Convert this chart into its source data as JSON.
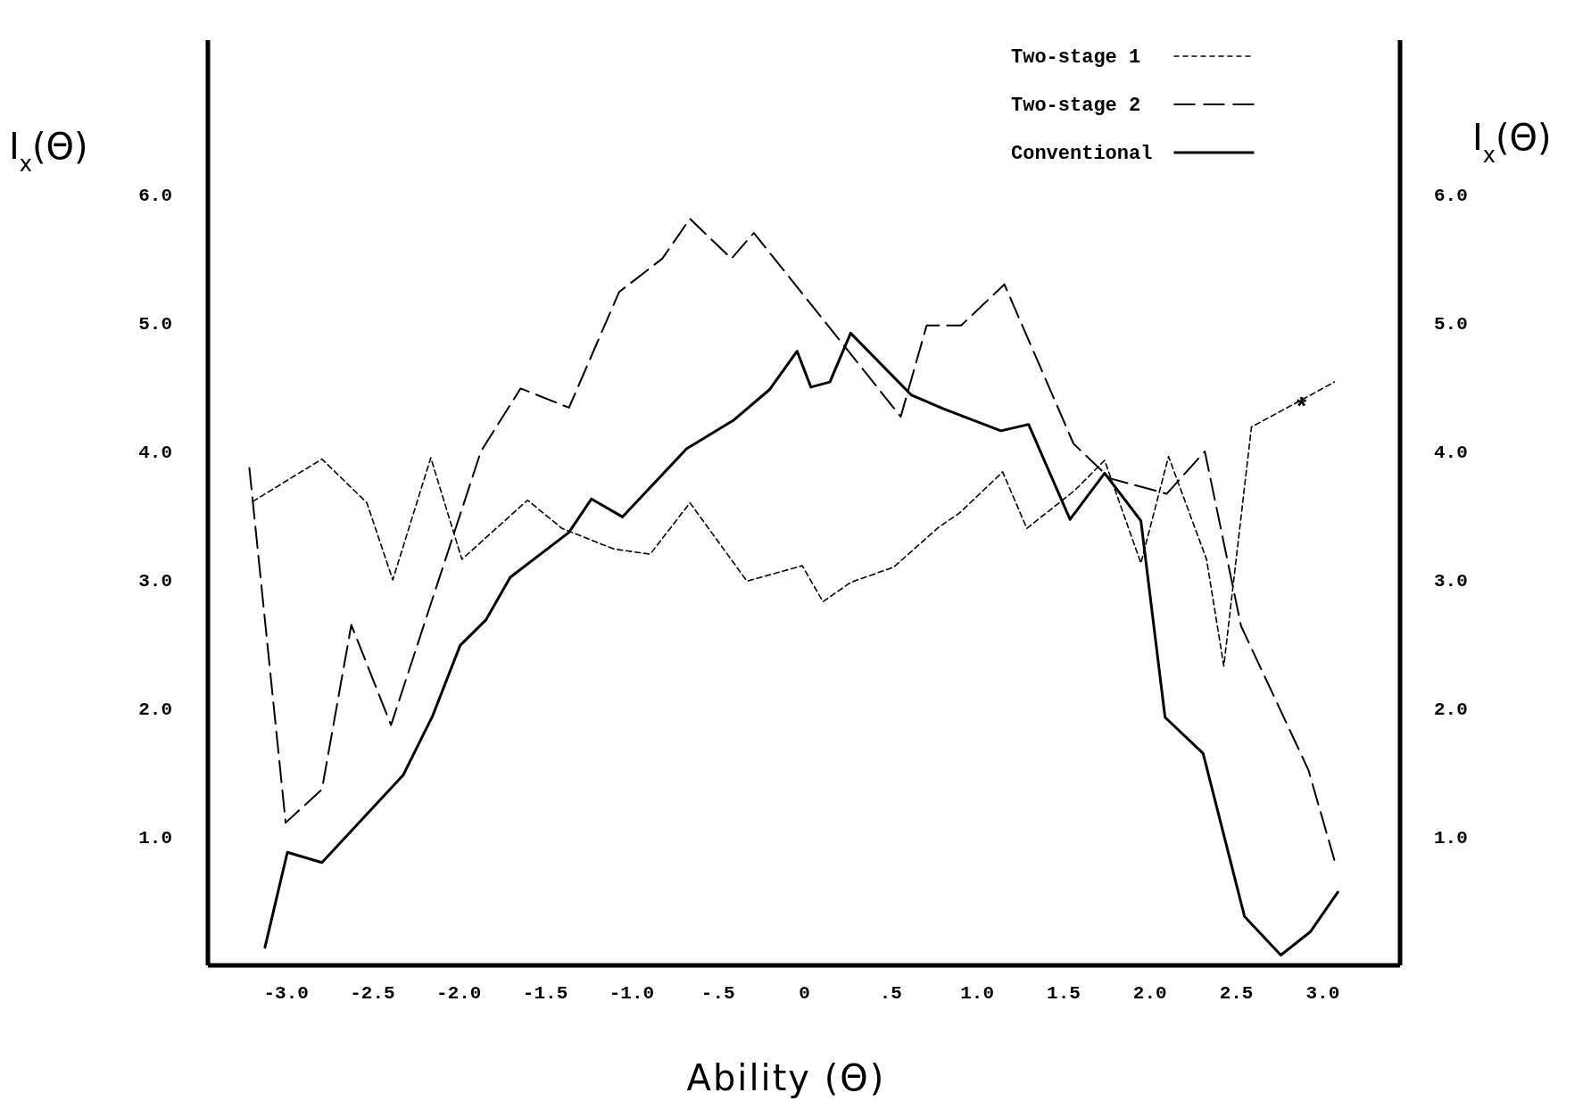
{
  "chart_data": {
    "type": "line",
    "xlabel": "Ability  (Θ)",
    "ylabel": "I$_{x}$(Θ)",
    "y2label": "I$_{x}$(Θ)",
    "xlim": [
      -3.45,
      3.45
    ],
    "ylim": [
      0,
      7.2
    ],
    "y2lim": [
      0,
      7.2
    ],
    "xticks": [
      {
        "value": -3,
        "label": "-3.0"
      },
      {
        "value": -2.5,
        "label": "-2.5"
      },
      {
        "value": -2,
        "label": "-2.0"
      },
      {
        "value": -1.5,
        "label": "-1.5"
      },
      {
        "value": -1,
        "label": "-1.0"
      },
      {
        "value": -0.5,
        "label": "-.5"
      },
      0,
      {
        "value": 0.5,
        "label": ".5"
      },
      {
        "value": 1,
        "label": "1.0"
      },
      {
        "value": 1.5,
        "label": "1.5"
      },
      {
        "value": 2,
        "label": "2.0"
      },
      {
        "value": 2.5,
        "label": "2.5"
      },
      {
        "value": 3,
        "label": "3.0"
      }
    ],
    "yticks": [
      {
        "value": 1,
        "label": "1.0"
      },
      {
        "value": 2,
        "label": "2.0"
      },
      {
        "value": 3,
        "label": "3.0"
      },
      {
        "value": 4,
        "label": "4.0"
      },
      {
        "value": 5,
        "label": "5.0"
      },
      {
        "value": 6,
        "label": "6.0"
      }
    ],
    "y2ticks": [
      {
        "value": 1,
        "label": "1.0"
      },
      {
        "value": 2,
        "label": "2.0"
      },
      {
        "value": 3,
        "label": "3.0"
      },
      {
        "value": 4,
        "label": "4.0"
      },
      {
        "value": 5,
        "label": "5.0"
      },
      {
        "value": 6,
        "label": "6.0"
      }
    ],
    "legend": "top right",
    "grid": false,
    "annotations": [
      {
        "text": "*",
        "x": 2.88,
        "y": 4.38
      }
    ],
    "series": [
      {
        "name": "Two-stage 1",
        "color": "#000000",
        "line_style": "dotted",
        "x": [
          -3.19,
          -2.79,
          -2.53,
          -2.38,
          -2.16,
          -1.98,
          -1.6,
          -1.4,
          -1.1,
          -0.89,
          -0.66,
          -0.33,
          -0.01,
          0.11,
          0.27,
          0.52,
          0.78,
          0.9,
          1.15,
          1.29,
          1.57,
          1.74,
          1.95,
          2.11,
          2.33,
          2.43,
          2.59,
          2.88,
          3.07
        ],
        "values": [
          3.61,
          3.94,
          3.6,
          3.0,
          3.95,
          3.16,
          3.62,
          3.4,
          3.24,
          3.2,
          3.6,
          2.99,
          3.11,
          2.83,
          2.98,
          3.1,
          3.41,
          3.52,
          3.84,
          3.4,
          3.7,
          3.93,
          3.13,
          3.96,
          3.16,
          2.33,
          4.19,
          4.4,
          4.54
        ]
      },
      {
        "name": "Two-stage 2",
        "color": "#000000",
        "line_style": "dashed",
        "x": [
          -3.21,
          -3.0,
          -2.79,
          -2.62,
          -2.39,
          -1.87,
          -1.64,
          -1.36,
          -1.07,
          -0.82,
          -0.66,
          -0.42,
          -0.29,
          0.56,
          0.71,
          0.91,
          1.16,
          1.56,
          1.77,
          2.1,
          2.32,
          2.53,
          2.92,
          3.07
        ],
        "values": [
          3.87,
          1.11,
          1.37,
          2.65,
          1.87,
          4.0,
          4.49,
          4.34,
          5.24,
          5.5,
          5.81,
          5.5,
          5.7,
          4.27,
          4.98,
          4.98,
          5.3,
          4.06,
          3.79,
          3.67,
          4.0,
          2.64,
          1.52,
          0.82
        ]
      },
      {
        "name": "Conventional",
        "color": "#000000",
        "line_style": "solid",
        "x": [
          -3.12,
          -2.99,
          -2.79,
          -2.32,
          -2.15,
          -1.99,
          -1.84,
          -1.7,
          -1.36,
          -1.23,
          -1.05,
          -0.68,
          -0.41,
          -0.2,
          -0.04,
          0.04,
          0.15,
          0.27,
          0.62,
          0.81,
          1.14,
          1.3,
          1.54,
          1.74,
          1.95,
          2.09,
          2.31,
          2.55,
          2.76,
          2.93,
          3.09
        ],
        "values": [
          0.14,
          0.88,
          0.8,
          1.48,
          1.94,
          2.49,
          2.69,
          3.02,
          3.37,
          3.63,
          3.49,
          4.02,
          4.24,
          4.48,
          4.78,
          4.5,
          4.54,
          4.92,
          4.44,
          4.33,
          4.16,
          4.21,
          3.47,
          3.83,
          3.46,
          1.93,
          1.65,
          0.38,
          0.08,
          0.26,
          0.57
        ]
      }
    ]
  }
}
